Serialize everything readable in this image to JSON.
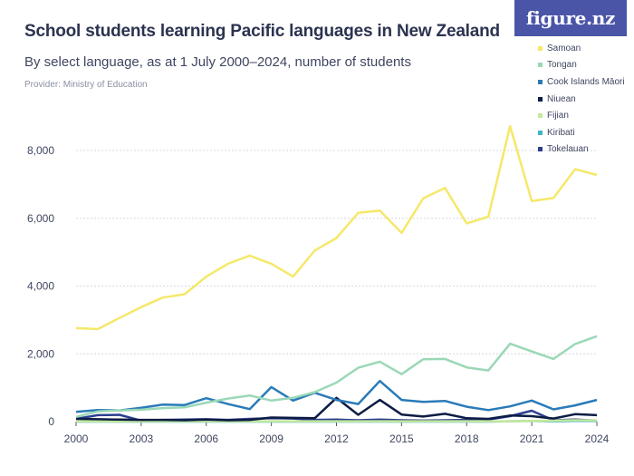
{
  "header": {
    "title": "School students learning Pacific languages in New Zealand",
    "subtitle": "By select language, as at 1 July 2000–2024, number of students",
    "provider": "Provider: Ministry of Education",
    "logo_text": "figure.nz"
  },
  "chart_data": {
    "type": "line",
    "x": [
      2000,
      2001,
      2002,
      2003,
      2004,
      2005,
      2006,
      2007,
      2008,
      2009,
      2010,
      2011,
      2012,
      2013,
      2014,
      2015,
      2016,
      2017,
      2018,
      2019,
      2020,
      2021,
      2022,
      2023,
      2024
    ],
    "x_ticks": [
      2000,
      2003,
      2006,
      2009,
      2012,
      2015,
      2018,
      2021,
      2024
    ],
    "y_ticks": [
      0,
      2000,
      4000,
      6000,
      8000
    ],
    "y_tick_labels": [
      "0",
      "2,000",
      "4,000",
      "6,000",
      "8,000"
    ],
    "ylim": [
      0,
      9500
    ],
    "grid": "horizontal",
    "legend_position": "top-right",
    "series": [
      {
        "name": "Samoan",
        "color": "#f5e86a",
        "values": [
          2760,
          2730,
          3060,
          3380,
          3660,
          3760,
          4280,
          4660,
          4900,
          4660,
          4280,
          5050,
          5420,
          6160,
          6230,
          5570,
          6590,
          6900,
          5850,
          6050,
          8720,
          6510,
          6600,
          7450,
          7280
        ]
      },
      {
        "name": "Tongan",
        "color": "#9ad8b7",
        "values": [
          140,
          300,
          330,
          350,
          400,
          420,
          560,
          680,
          770,
          620,
          700,
          870,
          1150,
          1590,
          1770,
          1400,
          1840,
          1850,
          1600,
          1510,
          2300,
          2070,
          1850,
          2290,
          2520
        ]
      },
      {
        "name": "Cook Islands Māori",
        "color": "#2a7bb8",
        "values": [
          290,
          340,
          330,
          410,
          500,
          490,
          690,
          520,
          370,
          1020,
          620,
          850,
          640,
          520,
          1200,
          640,
          580,
          610,
          440,
          340,
          450,
          620,
          360,
          480,
          640
        ]
      },
      {
        "name": "Niuean",
        "color": "#0d1c45",
        "values": [
          80,
          70,
          60,
          50,
          50,
          40,
          60,
          40,
          50,
          120,
          110,
          100,
          700,
          200,
          640,
          210,
          150,
          230,
          100,
          80,
          180,
          160,
          90,
          220,
          190
        ]
      },
      {
        "name": "Fijian",
        "color": "#c5e89c",
        "values": [
          10,
          10,
          10,
          10,
          10,
          10,
          10,
          10,
          10,
          10,
          10,
          10,
          10,
          10,
          10,
          10,
          10,
          10,
          10,
          10,
          10,
          20,
          30,
          40,
          40
        ]
      },
      {
        "name": "Kiribati",
        "color": "#40b4c4",
        "values": [
          0,
          0,
          0,
          0,
          0,
          0,
          0,
          0,
          0,
          0,
          0,
          0,
          0,
          0,
          0,
          0,
          0,
          0,
          0,
          0,
          10,
          20,
          10,
          20,
          20
        ]
      },
      {
        "name": "Tokelauan",
        "color": "#2c3f8f",
        "values": [
          80,
          190,
          200,
          30,
          50,
          60,
          70,
          50,
          80,
          100,
          90,
          50,
          60,
          40,
          60,
          40,
          30,
          40,
          50,
          60,
          160,
          320,
          40,
          60,
          30
        ]
      }
    ]
  }
}
